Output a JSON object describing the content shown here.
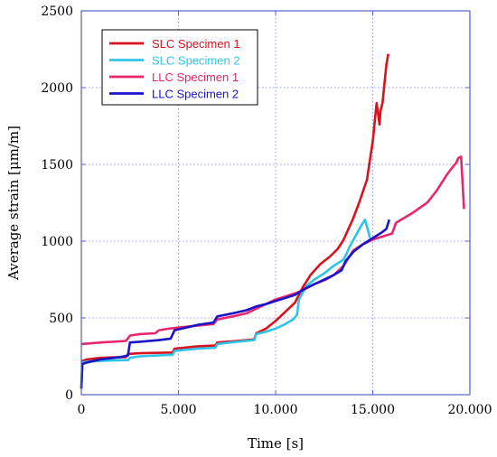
{
  "chart_data": {
    "type": "line",
    "title": "",
    "xlabel": "Time [s]",
    "ylabel": "Average strain [μm/m]",
    "xlim": [
      0,
      20000
    ],
    "ylim": [
      0,
      2500
    ],
    "x_ticks": [
      0,
      5000,
      10000,
      15000,
      20000
    ],
    "x_tick_labels": [
      "0",
      "5.000",
      "10.000",
      "15.000",
      "20.000"
    ],
    "y_ticks": [
      0,
      500,
      1000,
      1500,
      2000,
      2500
    ],
    "y_tick_labels": [
      "0",
      "500",
      "1000",
      "1500",
      "2000",
      "2500"
    ],
    "grid": true,
    "legend_position": "top-left",
    "series": [
      {
        "name": "SLC Specimen 1",
        "color": "#d9131e",
        "points": [
          [
            0,
            40
          ],
          [
            60,
            220
          ],
          [
            300,
            230
          ],
          [
            1000,
            240
          ],
          [
            2000,
            245
          ],
          [
            2300,
            245
          ],
          [
            2400,
            265
          ],
          [
            3000,
            270
          ],
          [
            4700,
            275
          ],
          [
            4800,
            300
          ],
          [
            6000,
            315
          ],
          [
            6900,
            320
          ],
          [
            7000,
            340
          ],
          [
            8000,
            350
          ],
          [
            8900,
            360
          ],
          [
            9000,
            400
          ],
          [
            9500,
            430
          ],
          [
            10000,
            480
          ],
          [
            10500,
            540
          ],
          [
            11000,
            600
          ],
          [
            11400,
            700
          ],
          [
            11800,
            780
          ],
          [
            12300,
            850
          ],
          [
            12800,
            900
          ],
          [
            13200,
            950
          ],
          [
            13500,
            1010
          ],
          [
            14000,
            1150
          ],
          [
            14300,
            1250
          ],
          [
            14700,
            1400
          ],
          [
            15000,
            1650
          ],
          [
            15200,
            1900
          ],
          [
            15350,
            1760
          ],
          [
            15400,
            1850
          ],
          [
            15500,
            1900
          ],
          [
            15700,
            2150
          ],
          [
            15800,
            2220
          ]
        ]
      },
      {
        "name": "SLC Specimen 2",
        "color": "#2ec4ea",
        "points": [
          [
            0,
            80
          ],
          [
            60,
            210
          ],
          [
            300,
            215
          ],
          [
            1000,
            220
          ],
          [
            2000,
            225
          ],
          [
            2400,
            225
          ],
          [
            2500,
            240
          ],
          [
            3000,
            250
          ],
          [
            4700,
            260
          ],
          [
            4800,
            285
          ],
          [
            6000,
            300
          ],
          [
            6900,
            305
          ],
          [
            7000,
            330
          ],
          [
            8000,
            345
          ],
          [
            8900,
            355
          ],
          [
            9000,
            395
          ],
          [
            9500,
            410
          ],
          [
            10000,
            430
          ],
          [
            10500,
            460
          ],
          [
            10900,
            490
          ],
          [
            11100,
            520
          ],
          [
            11200,
            620
          ],
          [
            11600,
            710
          ],
          [
            12000,
            750
          ],
          [
            12500,
            790
          ],
          [
            13000,
            840
          ],
          [
            13500,
            880
          ],
          [
            13800,
            960
          ],
          [
            14100,
            1030
          ],
          [
            14400,
            1100
          ],
          [
            14600,
            1140
          ],
          [
            14800,
            1050
          ],
          [
            14850,
            1020
          ]
        ]
      },
      {
        "name": "LLC Specimen 1",
        "color": "#e8266e",
        "points": [
          [
            0,
            330
          ],
          [
            500,
            335
          ],
          [
            1000,
            340
          ],
          [
            1600,
            345
          ],
          [
            2300,
            350
          ],
          [
            2500,
            385
          ],
          [
            3000,
            395
          ],
          [
            3800,
            400
          ],
          [
            4000,
            420
          ],
          [
            4500,
            430
          ],
          [
            5200,
            440
          ],
          [
            6000,
            450
          ],
          [
            6800,
            460
          ],
          [
            7000,
            490
          ],
          [
            7800,
            510
          ],
          [
            8500,
            530
          ],
          [
            9000,
            560
          ],
          [
            9500,
            590
          ],
          [
            10000,
            620
          ],
          [
            10500,
            640
          ],
          [
            11000,
            660
          ],
          [
            11400,
            680
          ],
          [
            12000,
            720
          ],
          [
            12600,
            750
          ],
          [
            13000,
            780
          ],
          [
            13500,
            840
          ],
          [
            14000,
            940
          ],
          [
            14500,
            980
          ],
          [
            15000,
            1010
          ],
          [
            15500,
            1030
          ],
          [
            16000,
            1050
          ],
          [
            16200,
            1120
          ],
          [
            17000,
            1180
          ],
          [
            17800,
            1250
          ],
          [
            18300,
            1330
          ],
          [
            18800,
            1430
          ],
          [
            19100,
            1480
          ],
          [
            19300,
            1510
          ],
          [
            19400,
            1540
          ],
          [
            19550,
            1550
          ],
          [
            19700,
            1210
          ]
        ]
      },
      {
        "name": "LLC Specimen 2",
        "color": "#1a14c8",
        "points": [
          [
            0,
            40
          ],
          [
            50,
            200
          ],
          [
            300,
            210
          ],
          [
            1000,
            230
          ],
          [
            2000,
            245
          ],
          [
            2400,
            255
          ],
          [
            2500,
            340
          ],
          [
            3000,
            345
          ],
          [
            4000,
            355
          ],
          [
            4600,
            365
          ],
          [
            4800,
            420
          ],
          [
            5500,
            440
          ],
          [
            6000,
            455
          ],
          [
            6800,
            470
          ],
          [
            7000,
            510
          ],
          [
            7800,
            530
          ],
          [
            8500,
            550
          ],
          [
            9000,
            575
          ],
          [
            9500,
            590
          ],
          [
            10000,
            610
          ],
          [
            10500,
            630
          ],
          [
            11000,
            650
          ],
          [
            11500,
            690
          ],
          [
            12000,
            720
          ],
          [
            12500,
            750
          ],
          [
            13000,
            780
          ],
          [
            13400,
            810
          ],
          [
            13600,
            870
          ],
          [
            14000,
            930
          ],
          [
            14500,
            980
          ],
          [
            15000,
            1020
          ],
          [
            15500,
            1060
          ],
          [
            15700,
            1080
          ],
          [
            15800,
            1120
          ],
          [
            15850,
            1140
          ]
        ]
      }
    ]
  }
}
